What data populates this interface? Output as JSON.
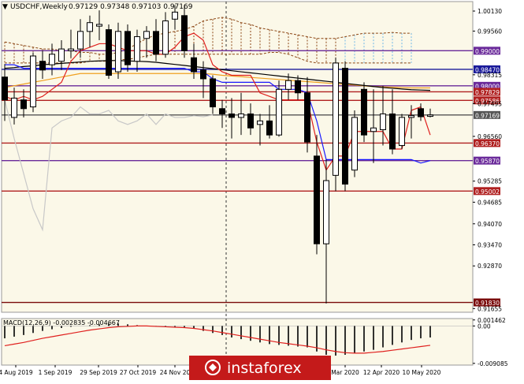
{
  "header": {
    "symbol_line": "USDCHF,Weekly",
    "ohlc": "0.97129 0.97348 0.97103 0.97169"
  },
  "macd_header": "MACD(12,26,9) -0.002835 -0.004667",
  "watermark": "instaforex",
  "colors": {
    "background": "#ffffff",
    "plot_bg": "#f7f2d9",
    "bull_candle": "#ffffff",
    "bear_candle": "#000000",
    "tenkan": "#e0201e",
    "kijun": "#1818ff",
    "ma_orange": "#f0a020",
    "ma_black": "#000000",
    "chikou": "#c8c8c8",
    "cloud": "#8b4513",
    "cloud_future": "#6fb8e8",
    "level_purple": "#6a2a9a",
    "level_blue": "#1a1a9a",
    "level_red": "#b02020",
    "level_darkred": "#7a0a0a",
    "macd_signal": "#e0201e",
    "watermark_bg": "#c41a1a"
  },
  "chart_data": [
    {
      "type": "candlestick",
      "timeframe": "Weekly",
      "x_tick_labels": [
        "4 Aug 2019",
        "1 Sep 2019",
        "29 Sep 2019",
        "27 Oct 2019",
        "24 Nov 20",
        "Mar 2020",
        "12 Apr 2020",
        "10 May 2020"
      ],
      "y_tick_labels": [
        "1.00130",
        "0.99560",
        "0.98315",
        "0.97495",
        "0.96560",
        "0.95285",
        "0.94685",
        "0.94070",
        "0.93470",
        "0.92870",
        "0.91655"
      ],
      "ylim": [
        0.9155,
        1.004
      ],
      "price_levels": [
        {
          "value": "0.99000",
          "color": "#6a2a9a"
        },
        {
          "value": "0.98470",
          "color": "#1a1a9a"
        },
        {
          "value": "0.98000",
          "color": "#6a2a9a"
        },
        {
          "value": "0.97829",
          "color": "#b02020"
        },
        {
          "value": "0.97586",
          "color": "#b02020"
        },
        {
          "value": "0.97169",
          "color": "#555555"
        },
        {
          "value": "0.96370",
          "color": "#b02020"
        },
        {
          "value": "0.95870",
          "color": "#6a2a9a"
        },
        {
          "value": "0.95002",
          "color": "#b02020"
        },
        {
          "value": "0.91830",
          "color": "#7a0a0a"
        }
      ],
      "candles": [
        {
          "o": 0.9825,
          "h": 0.9862,
          "l": 0.97,
          "c": 0.976
        },
        {
          "o": 0.971,
          "h": 0.9795,
          "l": 0.969,
          "c": 0.9765
        },
        {
          "o": 0.976,
          "h": 0.979,
          "l": 0.971,
          "c": 0.9735
        },
        {
          "o": 0.974,
          "h": 0.9895,
          "l": 0.9725,
          "c": 0.9885
        },
        {
          "o": 0.987,
          "h": 0.99,
          "l": 0.982,
          "c": 0.9845
        },
        {
          "o": 0.986,
          "h": 0.992,
          "l": 0.983,
          "c": 0.989
        },
        {
          "o": 0.987,
          "h": 0.993,
          "l": 0.9845,
          "c": 0.9905
        },
        {
          "o": 0.99,
          "h": 0.996,
          "l": 0.988,
          "c": 0.9905
        },
        {
          "o": 0.9905,
          "h": 0.999,
          "l": 0.988,
          "c": 0.9955
        },
        {
          "o": 0.9955,
          "h": 1.0,
          "l": 0.991,
          "c": 0.998
        },
        {
          "o": 0.997,
          "h": 1.0015,
          "l": 0.993,
          "c": 0.9975
        },
        {
          "o": 0.996,
          "h": 0.9975,
          "l": 0.982,
          "c": 0.983
        },
        {
          "o": 0.984,
          "h": 0.998,
          "l": 0.982,
          "c": 0.9955
        },
        {
          "o": 0.9955,
          "h": 0.9975,
          "l": 0.984,
          "c": 0.986
        },
        {
          "o": 0.987,
          "h": 0.996,
          "l": 0.984,
          "c": 0.994
        },
        {
          "o": 0.9935,
          "h": 0.997,
          "l": 0.988,
          "c": 0.9955
        },
        {
          "o": 0.9955,
          "h": 0.999,
          "l": 0.987,
          "c": 0.989
        },
        {
          "o": 0.989,
          "h": 1.001,
          "l": 0.988,
          "c": 0.9985
        },
        {
          "o": 0.999,
          "h": 1.003,
          "l": 0.996,
          "c": 1.001
        },
        {
          "o": 1.0,
          "h": 1.003,
          "l": 0.988,
          "c": 0.99
        },
        {
          "o": 0.988,
          "h": 0.992,
          "l": 0.982,
          "c": 0.984
        },
        {
          "o": 0.9845,
          "h": 0.987,
          "l": 0.9765,
          "c": 0.982
        },
        {
          "o": 0.982,
          "h": 0.983,
          "l": 0.972,
          "c": 0.974
        },
        {
          "o": 0.9735,
          "h": 0.976,
          "l": 0.968,
          "c": 0.972
        },
        {
          "o": 0.972,
          "h": 0.9765,
          "l": 0.965,
          "c": 0.971
        },
        {
          "o": 0.971,
          "h": 0.978,
          "l": 0.966,
          "c": 0.972
        },
        {
          "o": 0.972,
          "h": 0.975,
          "l": 0.966,
          "c": 0.968
        },
        {
          "o": 0.969,
          "h": 0.972,
          "l": 0.963,
          "c": 0.97
        },
        {
          "o": 0.97,
          "h": 0.9745,
          "l": 0.965,
          "c": 0.966
        },
        {
          "o": 0.966,
          "h": 0.9815,
          "l": 0.9655,
          "c": 0.979
        },
        {
          "o": 0.979,
          "h": 0.9835,
          "l": 0.976,
          "c": 0.9815
        },
        {
          "o": 0.9815,
          "h": 0.983,
          "l": 0.976,
          "c": 0.978
        },
        {
          "o": 0.978,
          "h": 0.9825,
          "l": 0.961,
          "c": 0.964
        },
        {
          "o": 0.96,
          "h": 0.966,
          "l": 0.932,
          "c": 0.935
        },
        {
          "o": 0.935,
          "h": 0.959,
          "l": 0.918,
          "c": 0.953
        },
        {
          "o": 0.9545,
          "h": 0.988,
          "l": 0.95,
          "c": 0.9865
        },
        {
          "o": 0.985,
          "h": 0.987,
          "l": 0.95,
          "c": 0.952
        },
        {
          "o": 0.956,
          "h": 0.973,
          "l": 0.954,
          "c": 0.971
        },
        {
          "o": 0.979,
          "h": 0.981,
          "l": 0.964,
          "c": 0.966
        },
        {
          "o": 0.967,
          "h": 0.979,
          "l": 0.958,
          "c": 0.968
        },
        {
          "o": 0.9675,
          "h": 0.98,
          "l": 0.963,
          "c": 0.972
        },
        {
          "o": 0.972,
          "h": 0.979,
          "l": 0.9605,
          "c": 0.962
        },
        {
          "o": 0.963,
          "h": 0.972,
          "l": 0.962,
          "c": 0.971
        },
        {
          "o": 0.971,
          "h": 0.9745,
          "l": 0.965,
          "c": 0.9715
        },
        {
          "o": 0.9735,
          "h": 0.975,
          "l": 0.97,
          "c": 0.9712
        },
        {
          "o": 0.9713,
          "h": 0.9735,
          "l": 0.971,
          "c": 0.9717
        }
      ],
      "lines": {
        "tenkan": [
          0.977,
          0.976,
          0.977,
          0.976,
          0.977,
          0.979,
          0.981,
          0.987,
          0.99,
          0.991,
          0.992,
          0.992,
          0.991,
          0.99,
          0.99,
          0.99,
          0.989,
          0.989,
          0.991,
          0.994,
          0.995,
          0.993,
          0.986,
          0.984,
          0.983,
          0.983,
          0.983,
          0.978,
          0.977,
          0.976,
          0.976,
          0.976,
          0.976,
          0.964,
          0.956,
          0.96,
          0.96,
          0.967,
          0.967,
          0.967,
          0.967,
          0.962,
          0.962,
          0.973,
          0.974,
          0.966
        ],
        "kijun": [
          0.986,
          0.986,
          0.985,
          0.985,
          0.985,
          0.985,
          0.985,
          0.985,
          0.985,
          0.985,
          0.985,
          0.985,
          0.985,
          0.985,
          0.985,
          0.985,
          0.985,
          0.985,
          0.985,
          0.985,
          0.984,
          0.984,
          0.982,
          0.981,
          0.981,
          0.981,
          0.981,
          0.981,
          0.981,
          0.979,
          0.979,
          0.979,
          0.978,
          0.97,
          0.959,
          0.959,
          0.959,
          0.959,
          0.959,
          0.959,
          0.959,
          0.959,
          0.959,
          0.959,
          0.958,
          0.9587
        ],
        "ma_orange": [
          0.9795,
          0.98,
          0.9805,
          0.981,
          0.9815,
          0.982,
          0.9825,
          0.983,
          0.9835,
          0.9835,
          0.9835,
          0.9835,
          0.9835,
          0.9835,
          0.9835,
          0.9835,
          0.9835,
          0.9835,
          0.9835,
          0.9835,
          0.9835,
          0.9835,
          0.9833,
          0.983,
          0.9828,
          0.9826,
          0.9824,
          0.9822,
          0.982,
          0.9818,
          0.9816,
          0.9814,
          0.9812,
          0.981,
          0.9808,
          0.9806,
          0.9804,
          0.9802,
          0.98,
          0.9798,
          0.9797,
          0.9796,
          0.9795,
          0.9794,
          0.9794,
          0.9794
        ],
        "ma_black": [
          0.985,
          0.9852,
          0.9855,
          0.9857,
          0.986,
          0.9862,
          0.9864,
          0.9866,
          0.9868,
          0.987,
          0.9871,
          0.9872,
          0.9872,
          0.9871,
          0.987,
          0.9869,
          0.9867,
          0.9864,
          0.9861,
          0.9858,
          0.9855,
          0.9852,
          0.9849,
          0.9846,
          0.9843,
          0.984,
          0.9837,
          0.9834,
          0.9831,
          0.9828,
          0.9825,
          0.9822,
          0.9819,
          0.9816,
          0.9813,
          0.981,
          0.9807,
          0.9804,
          0.9801,
          0.9798,
          0.9795,
          0.9793,
          0.9791,
          0.9789,
          0.9788,
          0.9787
        ],
        "chikou": [
          0.976,
          0.965,
          0.955,
          0.945,
          0.939,
          0.968,
          0.97,
          0.971,
          0.974,
          0.972,
          0.972,
          0.973,
          0.97,
          0.969,
          0.97,
          0.972,
          0.969,
          0.972,
          0.971,
          0.971,
          0.9715,
          0.9712,
          0.9717
        ]
      },
      "cloud": {
        "span_a": [
          0.9925,
          0.992,
          0.9915,
          0.991,
          0.9905,
          0.9905,
          0.99,
          0.99,
          0.9895,
          0.9895,
          0.989,
          0.989,
          0.9895,
          0.9905,
          0.992,
          0.9935,
          0.9945,
          0.995,
          0.9955,
          0.996,
          0.997,
          0.9985,
          0.999,
          0.9995,
          0.999,
          0.998,
          0.9975,
          0.9965,
          0.996,
          0.9955,
          0.995,
          0.9945,
          0.994,
          0.9935,
          0.9935,
          0.9935,
          0.994,
          0.9945,
          0.995,
          0.995,
          0.995,
          0.9952,
          0.995,
          0.995
        ],
        "span_b": [
          0.9865,
          0.9865,
          0.9865,
          0.9865,
          0.9865,
          0.9865,
          0.9865,
          0.9865,
          0.9865,
          0.987,
          0.987,
          0.987,
          0.9875,
          0.9875,
          0.988,
          0.9885,
          0.989,
          0.989,
          0.989,
          0.989,
          0.989,
          0.989,
          0.989,
          0.989,
          0.989,
          0.989,
          0.989,
          0.989,
          0.9895,
          0.9895,
          0.989,
          0.988,
          0.987,
          0.9865,
          0.9865,
          0.9865,
          0.9865,
          0.9865,
          0.9865,
          0.9865,
          0.9865,
          0.9865,
          0.9865,
          0.9865
        ],
        "start_index": 0,
        "future_from_index": 36
      }
    },
    {
      "type": "bar",
      "name": "MACD(12,26,9)",
      "y_tick_labels": [
        "0.001462",
        "0.00",
        "-0.009085"
      ],
      "ylim": [
        -0.0095,
        0.0018
      ],
      "histogram": [
        -0.003,
        -0.0026,
        -0.0022,
        -0.0017,
        -0.0012,
        -0.0008,
        -0.0005,
        -0.0002,
        0.0,
        0.0002,
        0.0004,
        0.0006,
        0.0006,
        0.0004,
        0.0002,
        0.0,
        -0.0001,
        -0.0002,
        -0.0002,
        -0.0003,
        -0.0006,
        -0.0012,
        -0.0017,
        -0.0022,
        -0.0028,
        -0.0032,
        -0.0036,
        -0.004,
        -0.0044,
        -0.0046,
        -0.0048,
        -0.005,
        -0.0052,
        -0.0062,
        -0.007,
        -0.0072,
        -0.007,
        -0.0066,
        -0.0062,
        -0.0058,
        -0.0052,
        -0.0046,
        -0.004,
        -0.0034,
        -0.003,
        -0.0028
      ],
      "signal": [
        -0.0048,
        -0.0044,
        -0.004,
        -0.0035,
        -0.003,
        -0.0026,
        -0.0022,
        -0.0018,
        -0.0014,
        -0.001,
        -0.0007,
        -0.0004,
        -0.0002,
        -0.0001,
        0.0,
        0.0,
        -0.0001,
        -0.0002,
        -0.0003,
        -0.0004,
        -0.0006,
        -0.0009,
        -0.0012,
        -0.0016,
        -0.002,
        -0.0024,
        -0.0028,
        -0.0032,
        -0.0036,
        -0.004,
        -0.0043,
        -0.0046,
        -0.0049,
        -0.0053,
        -0.0058,
        -0.0062,
        -0.0065,
        -0.0066,
        -0.0066,
        -0.0064,
        -0.0062,
        -0.0059,
        -0.0056,
        -0.0053,
        -0.005,
        -0.0047
      ]
    }
  ]
}
